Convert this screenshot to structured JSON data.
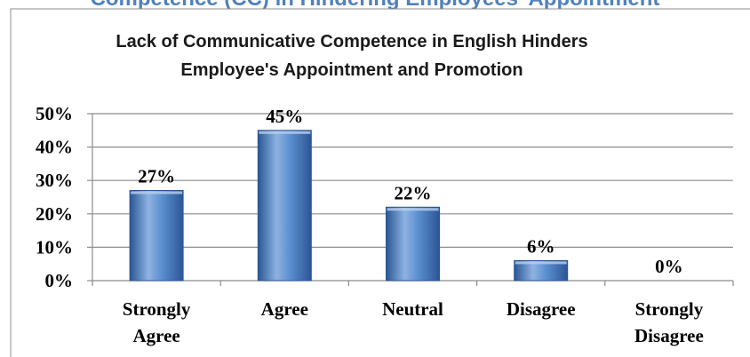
{
  "header_cut_text": "Competence (CC) in Hindering Employees' Appointment",
  "chart_data": {
    "type": "bar",
    "title": "Lack of Communicative Competence in English Hinders Employee's Appointment and Promotion",
    "title_lines": [
      "Lack of Communicative Competence in English Hinders",
      "Employee's Appointment and Promotion"
    ],
    "categories": [
      "Strongly Agree",
      "Agree",
      "Neutral",
      "Disagree",
      "Strongly Disagree"
    ],
    "category_lines": [
      [
        "Strongly",
        "Agree"
      ],
      [
        "Agree"
      ],
      [
        "Neutral"
      ],
      [
        "Disagree"
      ],
      [
        "Strongly",
        "Disagree"
      ]
    ],
    "values": [
      27,
      45,
      22,
      6,
      0
    ],
    "data_labels": [
      "27%",
      "45%",
      "22%",
      "6%",
      "0%"
    ],
    "ylim": [
      0,
      50
    ],
    "yticks": [
      0,
      10,
      20,
      30,
      40,
      50
    ],
    "ytick_labels": [
      "0%",
      "10%",
      "20%",
      "30%",
      "40%",
      "50%"
    ],
    "xlabel": "",
    "ylabel": "",
    "grid": true,
    "legend": "none",
    "bar_color": "#4f81bd",
    "bar_color_light": "#8db3e2",
    "bar_color_dark": "#2a5694"
  }
}
